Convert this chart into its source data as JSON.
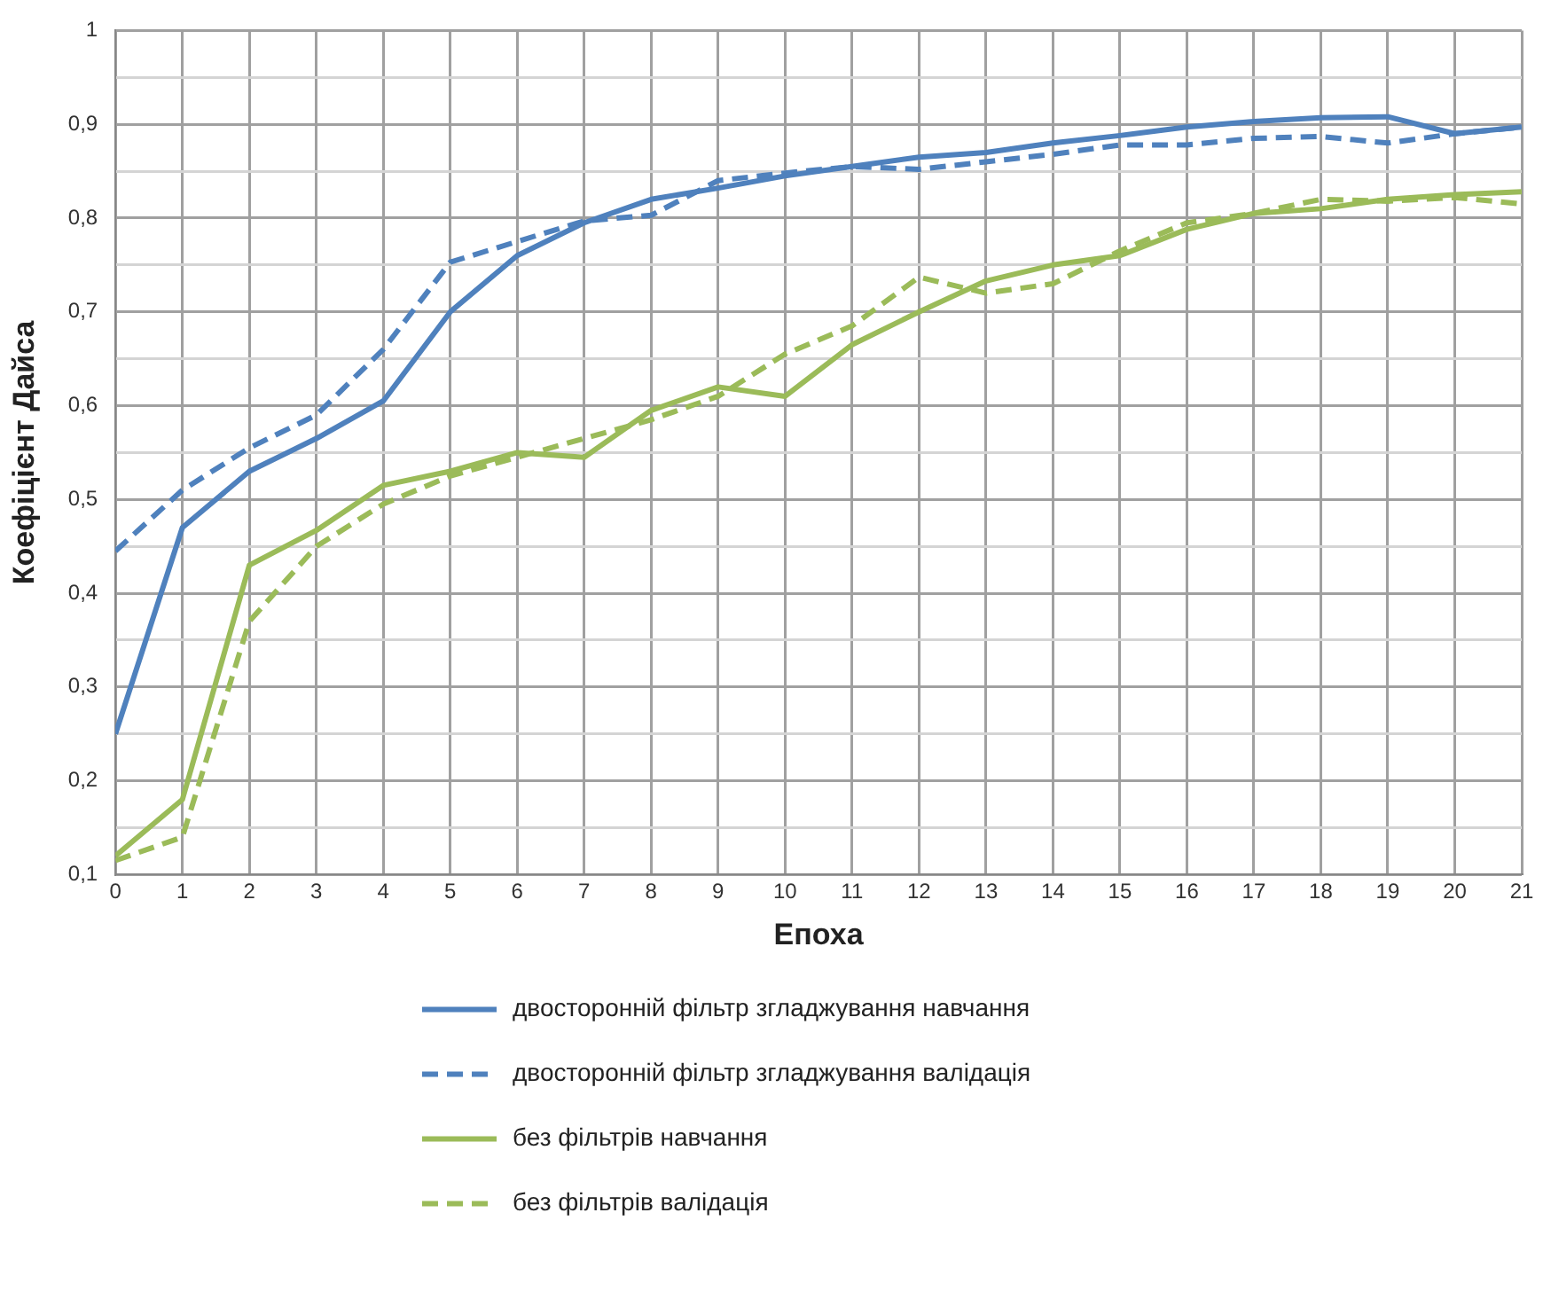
{
  "chart_data": {
    "type": "line",
    "xlabel": "Епоха",
    "ylabel": "Коефіцієнт Дайса",
    "x": [
      0,
      1,
      2,
      3,
      4,
      5,
      6,
      7,
      8,
      9,
      10,
      11,
      12,
      13,
      14,
      15,
      16,
      17,
      18,
      19,
      20,
      21
    ],
    "xlim": [
      0,
      21
    ],
    "xticks": [
      0,
      1,
      2,
      3,
      4,
      5,
      6,
      7,
      8,
      9,
      10,
      11,
      12,
      13,
      14,
      15,
      16,
      17,
      18,
      19,
      20,
      21
    ],
    "ylim": [
      0.1,
      1
    ],
    "yticks": [
      {
        "value": 0.1,
        "label": "0,1"
      },
      {
        "value": 0.15,
        "label": null
      },
      {
        "value": 0.2,
        "label": "0,2"
      },
      {
        "value": 0.25,
        "label": null
      },
      {
        "value": 0.3,
        "label": "0,3"
      },
      {
        "value": 0.35,
        "label": null
      },
      {
        "value": 0.4,
        "label": "0,4"
      },
      {
        "value": 0.45,
        "label": null
      },
      {
        "value": 0.5,
        "label": "0,5"
      },
      {
        "value": 0.55,
        "label": null
      },
      {
        "value": 0.6,
        "label": "0,6"
      },
      {
        "value": 0.65,
        "label": null
      },
      {
        "value": 0.7,
        "label": "0,7"
      },
      {
        "value": 0.75,
        "label": null
      },
      {
        "value": 0.8,
        "label": "0,8"
      },
      {
        "value": 0.85,
        "label": null
      },
      {
        "value": 0.9,
        "label": "0,9"
      },
      {
        "value": 0.95,
        "label": null
      },
      {
        "value": 1,
        "label": "1"
      }
    ],
    "grid": true,
    "legend": "bottom",
    "marker": "none",
    "series": [
      {
        "name": "двосторонній фільтр згладжування навчання",
        "color": "#4f81bd",
        "line_style": "solid",
        "values": [
          0.25,
          0.47,
          0.53,
          0.565,
          0.605,
          0.7,
          0.76,
          0.795,
          0.82,
          0.832,
          0.845,
          0.855,
          0.865,
          0.87,
          0.88,
          0.888,
          0.897,
          0.903,
          0.907,
          0.908,
          0.89,
          0.897
        ]
      },
      {
        "name": "двосторонній фільтр згладжування валідація",
        "color": "#4f81bd",
        "line_style": "dashed",
        "values": [
          0.445,
          0.51,
          0.555,
          0.59,
          0.66,
          0.753,
          0.775,
          0.797,
          0.803,
          0.84,
          0.848,
          0.855,
          0.852,
          0.86,
          0.868,
          0.878,
          0.878,
          0.885,
          0.887,
          0.88,
          0.89,
          0.897
        ]
      },
      {
        "name": "без фільтрів навчання",
        "color": "#9bbb59",
        "line_style": "solid",
        "values": [
          0.12,
          0.18,
          0.43,
          0.467,
          0.515,
          0.53,
          0.55,
          0.545,
          0.595,
          0.62,
          0.61,
          0.665,
          0.7,
          0.733,
          0.75,
          0.76,
          0.788,
          0.805,
          0.81,
          0.82,
          0.825,
          0.828
        ]
      },
      {
        "name": "без фільтрів валідація",
        "color": "#9bbb59",
        "line_style": "dashed",
        "values": [
          0.115,
          0.14,
          0.37,
          0.45,
          0.495,
          0.525,
          0.545,
          0.565,
          0.585,
          0.61,
          0.655,
          0.685,
          0.737,
          0.72,
          0.73,
          0.765,
          0.795,
          0.805,
          0.82,
          0.818,
          0.822,
          0.815
        ]
      }
    ]
  }
}
